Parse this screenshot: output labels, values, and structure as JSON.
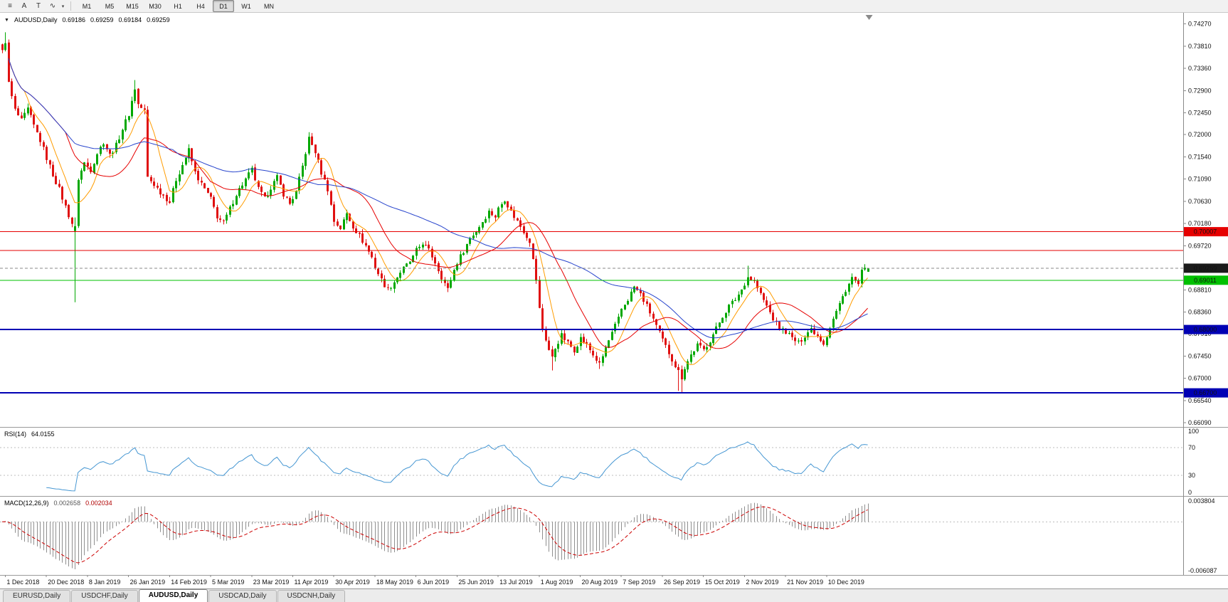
{
  "toolbar": {
    "tool_icons": [
      {
        "name": "cursor-lines-icon",
        "glyph": "≡"
      },
      {
        "name": "text-a-button",
        "glyph": "A"
      },
      {
        "name": "text-t-button",
        "glyph": "T"
      },
      {
        "name": "polyline-tool-button",
        "glyph": "∿"
      }
    ],
    "dropdown_glyph": "▾",
    "timeframes": [
      "M1",
      "M5",
      "M15",
      "M30",
      "H1",
      "H4",
      "D1",
      "W1",
      "MN"
    ],
    "active_timeframe": "D1"
  },
  "chart_title": {
    "dropdown_glyph": "▼",
    "symbol": "AUDUSD,Daily",
    "open": "0.69186",
    "high": "0.69259",
    "low": "0.69184",
    "close": "0.69259"
  },
  "rsi": {
    "label": "RSI(14)",
    "value": "64.0155",
    "period": 14,
    "levels": [
      100,
      70,
      30,
      0
    ],
    "color": "#4596d2"
  },
  "macd": {
    "label": "MACD(12,26,9)",
    "value_main": "0.002658",
    "value_signal": "0.002034",
    "fast": 12,
    "slow": 26,
    "signal": 9,
    "axis_max": "0.003804",
    "axis_min": "-0.006087",
    "hist_color": "#8f8f8f",
    "signal_color": "#cc0000"
  },
  "chart_data": {
    "type": "candlestick",
    "symbol": "AUDUSD",
    "timeframe": "Daily",
    "bars": 275,
    "visible_range": {
      "top": 0.745,
      "bottom": 0.66
    },
    "colors": {
      "up": "#00a800",
      "down": "#e01010"
    },
    "moving_averages": [
      {
        "name": "ma-fast-line",
        "period": 8,
        "color": "#ff9c00"
      },
      {
        "name": "ma-mid-line",
        "period": 21,
        "color": "#e60000"
      },
      {
        "name": "ma-slow-line",
        "period": 55,
        "color": "#2744cc"
      }
    ],
    "y_axis_labels": [
      "0.74270",
      "0.73810",
      "0.73360",
      "0.72900",
      "0.72450",
      "0.72000",
      "0.71540",
      "0.71090",
      "0.70630",
      "0.70180",
      "0.69720",
      "0.68810",
      "0.68360",
      "0.67910",
      "0.67450",
      "0.67000",
      "0.66540",
      "0.66090"
    ],
    "x_dates": [
      "1 Dec 2018",
      "20 Dec 2018",
      "8 Jan 2019",
      "26 Jan 2019",
      "14 Feb 2019",
      "5 Mar 2019",
      "23 Mar 2019",
      "11 Apr 2019",
      "30 Apr 2019",
      "18 May 2019",
      "6 Jun 2019",
      "25 Jun 2019",
      "13 Jul 2019",
      "1 Aug 2019",
      "20 Aug 2019",
      "7 Sep 2019",
      "26 Sep 2019",
      "15 Oct 2019",
      "2 Nov 2019",
      "21 Nov 2019",
      "10 Dec 2019"
    ],
    "bid": {
      "text": "0.69259",
      "value": 0.69259,
      "color": "#8a8a8a",
      "tag_color": "#1a1a1a"
    },
    "hlines": [
      {
        "name": "resistance-line-upper",
        "text": "0.70007",
        "value": 0.70007,
        "color": "#e60000",
        "tagged": true,
        "width": 1
      },
      {
        "name": "resistance-line-lower",
        "value": 0.6962,
        "color": "#e60000",
        "tagged": false,
        "width": 1
      },
      {
        "name": "support-line-green",
        "text": "0.69011",
        "value": 0.69011,
        "color": "#00c000",
        "tagged": true,
        "width": 1
      },
      {
        "name": "support-line-blue-1",
        "text": "0.68000",
        "value": 0.68,
        "color": "#0000b4",
        "tagged": true,
        "width": 2
      },
      {
        "name": "support-line-blue-2",
        "text": "0.66700",
        "value": 0.667,
        "color": "#0000b4",
        "tagged": true,
        "width": 2
      }
    ],
    "price_path": [
      [
        0,
        0.737
      ],
      [
        1,
        0.7392
      ],
      [
        2,
        0.7305
      ],
      [
        4,
        0.725
      ],
      [
        6,
        0.7228
      ],
      [
        8,
        0.7252
      ],
      [
        10,
        0.7218
      ],
      [
        12,
        0.7188
      ],
      [
        14,
        0.7152
      ],
      [
        16,
        0.7118
      ],
      [
        18,
        0.7088
      ],
      [
        20,
        0.7052
      ],
      [
        22,
        0.7018
      ],
      [
        23,
        0.7
      ],
      [
        24,
        0.711
      ],
      [
        26,
        0.7142
      ],
      [
        28,
        0.7128
      ],
      [
        30,
        0.7162
      ],
      [
        32,
        0.7185
      ],
      [
        34,
        0.7158
      ],
      [
        36,
        0.7178
      ],
      [
        38,
        0.7212
      ],
      [
        40,
        0.7242
      ],
      [
        42,
        0.7295
      ],
      [
        43,
        0.7262
      ],
      [
        45,
        0.7248
      ],
      [
        46,
        0.7112
      ],
      [
        48,
        0.7098
      ],
      [
        50,
        0.7082
      ],
      [
        53,
        0.7062
      ],
      [
        55,
        0.7108
      ],
      [
        57,
        0.7138
      ],
      [
        59,
        0.7168
      ],
      [
        61,
        0.7122
      ],
      [
        63,
        0.7098
      ],
      [
        66,
        0.7068
      ],
      [
        68,
        0.7032
      ],
      [
        70,
        0.7018
      ],
      [
        72,
        0.7048
      ],
      [
        74,
        0.7078
      ],
      [
        76,
        0.7098
      ],
      [
        79,
        0.7128
      ],
      [
        81,
        0.7088
      ],
      [
        83,
        0.7068
      ],
      [
        85,
        0.7092
      ],
      [
        87,
        0.7112
      ],
      [
        89,
        0.7078
      ],
      [
        91,
        0.7058
      ],
      [
        93,
        0.7082
      ],
      [
        95,
        0.7135
      ],
      [
        97,
        0.7192
      ],
      [
        99,
        0.7165
      ],
      [
        101,
        0.7122
      ],
      [
        103,
        0.7088
      ],
      [
        105,
        0.7022
      ],
      [
        107,
        0.7008
      ],
      [
        109,
        0.7038
      ],
      [
        111,
        0.7012
      ],
      [
        113,
        0.6992
      ],
      [
        115,
        0.6972
      ],
      [
        117,
        0.6948
      ],
      [
        118,
        0.6928
      ],
      [
        120,
        0.6902
      ],
      [
        122,
        0.6882
      ],
      [
        124,
        0.6898
      ],
      [
        126,
        0.6918
      ],
      [
        128,
        0.6932
      ],
      [
        130,
        0.6948
      ],
      [
        131,
        0.6962
      ],
      [
        133,
        0.6978
      ],
      [
        135,
        0.6962
      ],
      [
        137,
        0.6938
      ],
      [
        139,
        0.6908
      ],
      [
        141,
        0.6882
      ],
      [
        143,
        0.6922
      ],
      [
        144,
        0.6938
      ],
      [
        146,
        0.6962
      ],
      [
        148,
        0.6988
      ],
      [
        150,
        0.7002
      ],
      [
        152,
        0.7022
      ],
      [
        154,
        0.7042
      ],
      [
        156,
        0.7032
      ],
      [
        157,
        0.7048
      ],
      [
        159,
        0.7068
      ],
      [
        161,
        0.7042
      ],
      [
        163,
        0.7022
      ],
      [
        165,
        0.7002
      ],
      [
        167,
        0.6982
      ],
      [
        169,
        0.6902
      ],
      [
        170,
        0.6842
      ],
      [
        171,
        0.6802
      ],
      [
        173,
        0.6758
      ],
      [
        174,
        0.6742
      ],
      [
        175,
        0.6762
      ],
      [
        177,
        0.6788
      ],
      [
        179,
        0.6772
      ],
      [
        181,
        0.6758
      ],
      [
        183,
        0.6782
      ],
      [
        185,
        0.6768
      ],
      [
        187,
        0.6748
      ],
      [
        189,
        0.6728
      ],
      [
        191,
        0.6762
      ],
      [
        193,
        0.6792
      ],
      [
        195,
        0.6822
      ],
      [
        196,
        0.6842
      ],
      [
        198,
        0.6862
      ],
      [
        200,
        0.6888
      ],
      [
        202,
        0.6872
      ],
      [
        204,
        0.6848
      ],
      [
        206,
        0.6822
      ],
      [
        208,
        0.6792
      ],
      [
        209,
        0.6778
      ],
      [
        211,
        0.6752
      ],
      [
        213,
        0.6726
      ],
      [
        215,
        0.6702
      ],
      [
        216,
        0.6722
      ],
      [
        218,
        0.6748
      ],
      [
        220,
        0.6768
      ],
      [
        222,
        0.6758
      ],
      [
        224,
        0.6778
      ],
      [
        226,
        0.6802
      ],
      [
        228,
        0.6828
      ],
      [
        230,
        0.6848
      ],
      [
        232,
        0.6862
      ],
      [
        234,
        0.6882
      ],
      [
        236,
        0.6908
      ],
      [
        238,
        0.6898
      ],
      [
        240,
        0.6872
      ],
      [
        242,
        0.6848
      ],
      [
        244,
        0.6822
      ],
      [
        246,
        0.6802
      ],
      [
        248,
        0.6796
      ],
      [
        250,
        0.6782
      ],
      [
        252,
        0.6772
      ],
      [
        254,
        0.6788
      ],
      [
        256,
        0.6802
      ],
      [
        258,
        0.6788
      ],
      [
        260,
        0.6772
      ],
      [
        261,
        0.6788
      ],
      [
        263,
        0.6822
      ],
      [
        265,
        0.6852
      ],
      [
        267,
        0.6882
      ],
      [
        269,
        0.6906
      ],
      [
        271,
        0.6892
      ],
      [
        272,
        0.6918
      ],
      [
        274,
        0.69259
      ]
    ],
    "overrides": {
      "1": {
        "high": 0.741
      },
      "23": {
        "open": 0.7002,
        "close": 0.7012,
        "high": 0.703,
        "low": 0.6856
      },
      "42": {
        "high": 0.7312
      },
      "97": {
        "high": 0.7205
      },
      "174": {
        "low": 0.6716
      },
      "189": {
        "low": 0.6719
      },
      "214": {
        "low": 0.6674
      },
      "215": {
        "low": 0.6671
      },
      "236": {
        "high": 0.6931
      },
      "274": {
        "open": 0.69186,
        "high": 0.69259,
        "low": 0.69184,
        "close": 0.69259
      }
    }
  },
  "tabs": [
    {
      "label": "EURUSD,Daily",
      "active": false
    },
    {
      "label": "USDCHF,Daily",
      "active": false
    },
    {
      "label": "AUDUSD,Daily",
      "active": true
    },
    {
      "label": "USDCAD,Daily",
      "active": false
    },
    {
      "label": "USDCNH,Daily",
      "active": false
    }
  ]
}
